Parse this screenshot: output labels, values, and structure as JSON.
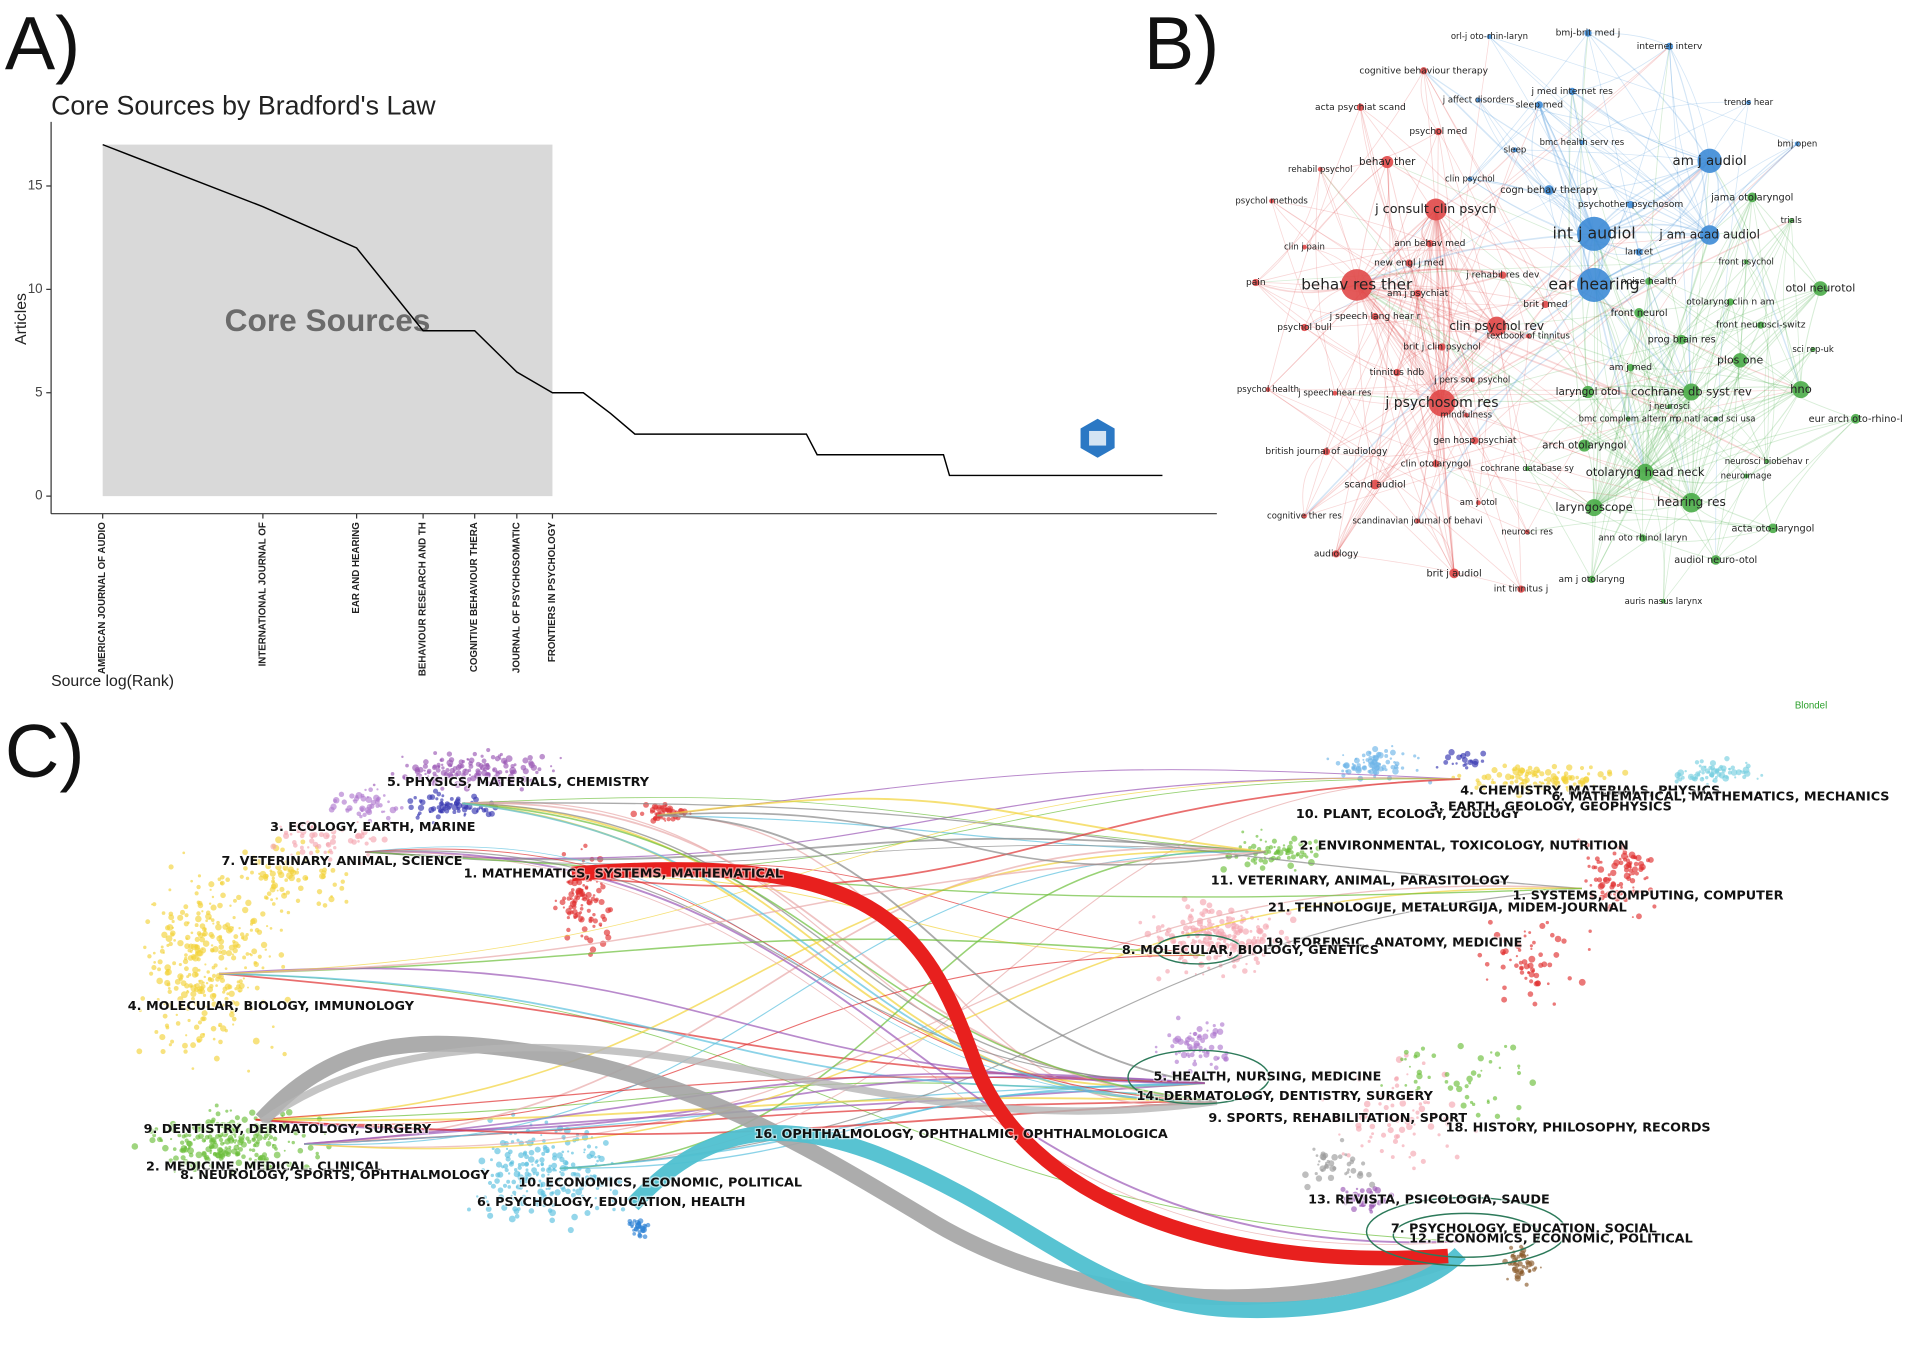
{
  "panel_labels": [
    "A)",
    "B)",
    "C)"
  ],
  "chart_data": {
    "type": "line",
    "title": "Core Sources by Bradford's Law",
    "annotation": "Core Sources",
    "xlabel": "Source log(Rank)",
    "ylabel": "Articles",
    "xscale": "log",
    "x": [
      1,
      2,
      3,
      4,
      5,
      6,
      7,
      8,
      9,
      10,
      21,
      22,
      38,
      39,
      98
    ],
    "values": [
      17,
      14,
      12,
      8,
      8,
      6,
      5,
      5,
      4,
      3,
      3,
      2,
      2,
      1,
      1
    ],
    "color": "#000000",
    "shade_color": "#d9d9d9",
    "xlim": [
      0.8,
      124
    ],
    "ylim": [
      -0.85,
      18.1
    ],
    "xticks": [
      {
        "value": 1,
        "label": "AMERICAN JOURNAL OF AUDIO"
      },
      {
        "value": 2,
        "label": "INTERNATIONAL JOURNAL OF"
      },
      {
        "value": 3,
        "label": "EAR AND HEARING"
      },
      {
        "value": 4,
        "label": "BEHAVIOUR RESEARCH AND TH"
      },
      {
        "value": 5,
        "label": "COGNITIVE BEHAVIOUR THERA"
      },
      {
        "value": 6,
        "label": "JOURNAL OF PSYCHOSOMATIC"
      },
      {
        "value": 7,
        "label": "FRONTIERS IN PSYCHOLOGY"
      }
    ],
    "yticks": [
      0,
      5,
      10,
      15
    ]
  },
  "network": {
    "clusters": [
      {
        "color": "#e04848",
        "nodes": [
          "cognitive behaviour therapy",
          "acta psychiat scand",
          "psychol med",
          "behav ther",
          "rehabil psychol",
          "psychol methods",
          "j consult clin psych",
          "ann behav med",
          "new engl j med",
          "j rehabil res dev",
          "clin j pain",
          "pain",
          "behav res ther",
          "am j psychiat",
          "brit j med",
          "j speech lang hear r",
          "clin psychol rev",
          "psychol bull",
          "brit j clin psychol",
          "textbook of tinnitus",
          "tinnitus hdb",
          "j pers soc psychol",
          "j psychosom res",
          "psychol health",
          "j speech hear res",
          "mindfulness",
          "gen hosp psychiat",
          "british journal of audiology",
          "clin otolaryngol",
          "scand audiol",
          "cognitive ther res",
          "am j otol",
          "scandinavian journal of behavi",
          "neurosci res",
          "audiology",
          "brit j audiol",
          "int tinnitus j"
        ]
      },
      {
        "color": "#3d8bd6",
        "nodes": [
          "orl-j oto-rhin-laryn",
          "bmj-brit med j",
          "internet interv",
          "j affect disorders",
          "j med internet res",
          "sleep med",
          "trends hear",
          "bmc health serv res",
          "sleep",
          "bmj open",
          "am j audiol",
          "clin psychol",
          "cogn behav therapy",
          "psychother psychosom",
          "int j audiol",
          "j am acad audiol",
          "lancet",
          "ear hearing"
        ]
      },
      {
        "color": "#4aac48",
        "nodes": [
          "jama otolaryngol",
          "trials",
          "front psychol",
          "noise health",
          "otol neurotol",
          "otolaryng clin n am",
          "front neurol",
          "front neurosci-switz",
          "prog brain res",
          "sci rep-uk",
          "plos one",
          "am j med",
          "laryngol otol",
          "cochrane db syst rev",
          "hno",
          "j neurosci",
          "bmc complem altern m",
          "p natl acad sci usa",
          "eur arch oto-rhino-l",
          "arch otolaryngol",
          "neurosci biobehav r",
          "cochrane database sy",
          "otolaryng head neck",
          "neuroimage",
          "laryngoscope",
          "hearing res",
          "acta oto-laryngol",
          "ann oto rhinol laryn",
          "audiol neuro-otol",
          "am j otolaryng",
          "auris nasus larynx"
        ]
      }
    ]
  },
  "overlay": {
    "method": "Blondel",
    "left_labels": [
      "5. PHYSICS, MATERIALS, CHEMISTRY",
      "3. ECOLOGY, EARTH, MARINE",
      "7. VETERINARY, ANIMAL, SCIENCE",
      "1. MATHEMATICS, SYSTEMS, MATHEMATICAL",
      "4. MOLECULAR, BIOLOGY, IMMUNOLOGY",
      "9. DENTISTRY, DERMATOLOGY, SURGERY",
      "2. MEDICINE, MEDICAL, CLINICAL",
      "8. NEUROLOGY, SPORTS, OPHTHALMOLOGY",
      "10. ECONOMICS, ECONOMIC, POLITICAL",
      "6. PSYCHOLOGY, EDUCATION, HEALTH",
      "16. OPHTHALMOLOGY, OPHTHALMIC, OPHTHALMOLOGICA"
    ],
    "right_labels": [
      "4. CHEMISTRY, MATERIALS, PHYSICS",
      "10. PLANT, ECOLOGY, ZOOLOGY",
      "3. EARTH, GEOLOGY, GEOPHYSICS",
      "6. MATHEMATICAL, MATHEMATICS, MECHANICS",
      "2. ENVIRONMENTAL, TOXICOLOGY, NUTRITION",
      "11. VETERINARY, ANIMAL, PARASITOLOGY",
      "21. TEHNOLOGIJE, METALURGIJA, MIDEM-JOURNAL",
      "1. SYSTEMS, COMPUTING, COMPUTER",
      "19. FORENSIC, ANATOMY, MEDICINE",
      "8. MOLECULAR, BIOLOGY, GENETICS",
      "5. HEALTH, NURSING, MEDICINE",
      "14. DERMATOLOGY, DENTISTRY, SURGERY",
      "9. SPORTS, REHABILITATION, SPORT",
      "18. HISTORY, PHILOSOPHY, RECORDS",
      "13. REVISTA, PSICOLOGIA, SAUDE",
      "7. PSYCHOLOGY, EDUCATION, SOCIAL",
      "12. ECONOMICS, ECONOMIC, POLITICAL"
    ]
  }
}
